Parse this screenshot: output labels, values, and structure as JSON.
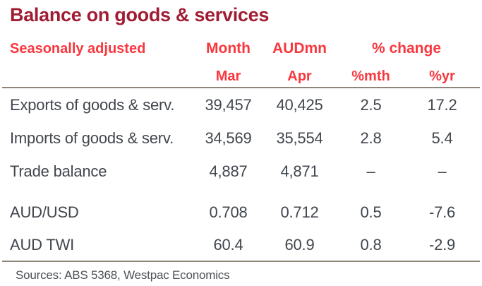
{
  "title": "Balance on goods & services",
  "colors": {
    "title_text": "#A01C33",
    "header_text": "#F8373E",
    "body_text": "#41464D",
    "rule_line": "#8E8479",
    "footer_text": "#4D5156",
    "background": "#FFFFFF"
  },
  "table": {
    "header": {
      "label": "Seasonally adjusted",
      "group_month": "Month",
      "group_audmn": "AUDmn",
      "group_pct_change": "% change",
      "sub_mar": "Mar",
      "sub_apr": "Apr",
      "sub_pct_mth": "%mth",
      "sub_pct_yr": "%yr"
    },
    "rows": [
      {
        "label": "Exports of goods & serv.",
        "mar": "39,457",
        "apr": "40,425",
        "pct_mth": "2.5",
        "pct_yr": "17.2"
      },
      {
        "label": "Imports of goods & serv.",
        "mar": "34,569",
        "apr": "35,554",
        "pct_mth": "2.8",
        "pct_yr": "5.4"
      },
      {
        "label": "Trade balance",
        "mar": "4,887",
        "apr": "4,871",
        "pct_mth": "–",
        "pct_yr": "–"
      },
      {
        "label": "AUD/USD",
        "mar": "0.708",
        "apr": "0.712",
        "pct_mth": "0.5",
        "pct_yr": "-7.6"
      },
      {
        "label": "AUD TWI",
        "mar": "60.4",
        "apr": "60.9",
        "pct_mth": "0.8",
        "pct_yr": "-2.9"
      }
    ]
  },
  "footer": {
    "sources": "Sources: ABS 5368, Westpac Economics"
  }
}
